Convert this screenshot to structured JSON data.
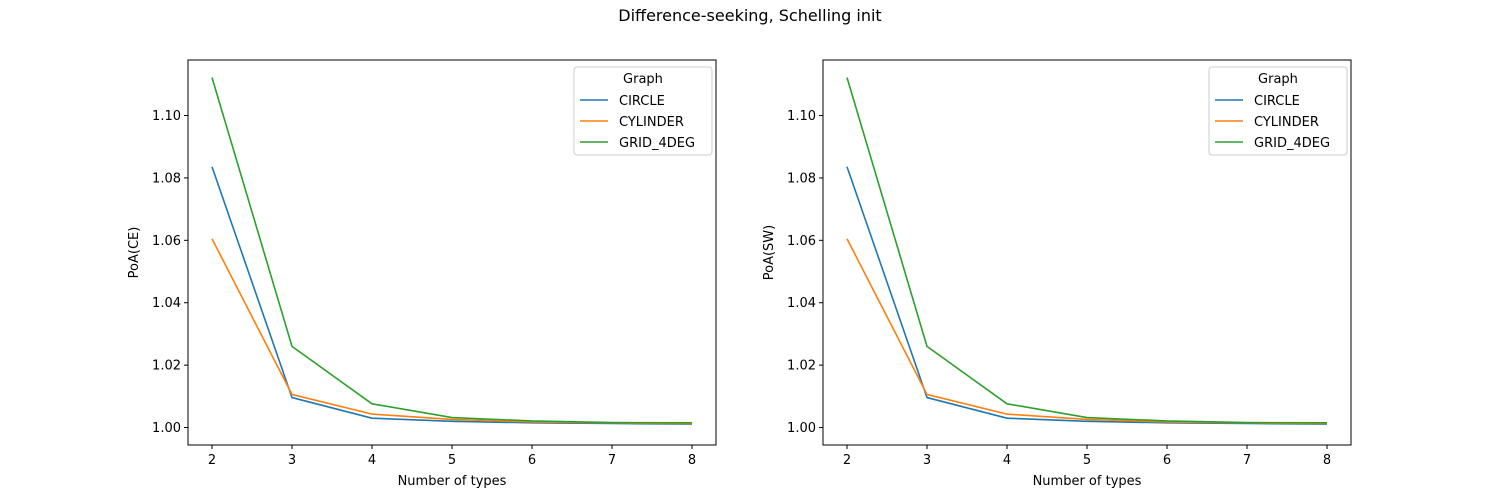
{
  "figure": {
    "title": "Difference-seeking, Schelling init"
  },
  "chart_data": [
    {
      "type": "line",
      "xlabel": "Number of types",
      "ylabel": "PoA(CE)",
      "x": [
        2,
        3,
        4,
        5,
        6,
        7,
        8
      ],
      "xlim": [
        1.7,
        8.3
      ],
      "ylim": [
        0.9944,
        1.1178
      ],
      "xticks": [
        "2",
        "3",
        "4",
        "5",
        "6",
        "7",
        "8"
      ],
      "yticks": [
        "1.00",
        "1.02",
        "1.04",
        "1.06",
        "1.08",
        "1.10"
      ],
      "legend": {
        "title": "Graph",
        "position": "top-right"
      },
      "grid": false,
      "series": [
        {
          "name": "CIRCLE",
          "color": "#1f77b4",
          "values": [
            1.0836,
            1.0096,
            1.003,
            1.002,
            1.0015,
            1.0013,
            1.0011
          ]
        },
        {
          "name": "CYLINDER",
          "color": "#ff7f0e",
          "values": [
            1.0605,
            1.0106,
            1.0043,
            1.0026,
            1.0018,
            1.0015,
            1.0013
          ]
        },
        {
          "name": "GRID_4DEG",
          "color": "#2ca02c",
          "values": [
            1.1122,
            1.026,
            1.0076,
            1.0032,
            1.0021,
            1.0016,
            1.0015
          ]
        }
      ]
    },
    {
      "type": "line",
      "xlabel": "Number of types",
      "ylabel": "PoA(SW)",
      "x": [
        2,
        3,
        4,
        5,
        6,
        7,
        8
      ],
      "xlim": [
        1.7,
        8.3
      ],
      "ylim": [
        0.9944,
        1.1178
      ],
      "xticks": [
        "2",
        "3",
        "4",
        "5",
        "6",
        "7",
        "8"
      ],
      "yticks": [
        "1.00",
        "1.02",
        "1.04",
        "1.06",
        "1.08",
        "1.10"
      ],
      "legend": {
        "title": "Graph",
        "position": "top-right"
      },
      "grid": false,
      "series": [
        {
          "name": "CIRCLE",
          "color": "#1f77b4",
          "values": [
            1.0836,
            1.0096,
            1.003,
            1.002,
            1.0015,
            1.0013,
            1.0011
          ]
        },
        {
          "name": "CYLINDER",
          "color": "#ff7f0e",
          "values": [
            1.0605,
            1.0106,
            1.0043,
            1.0026,
            1.0018,
            1.0015,
            1.0013
          ]
        },
        {
          "name": "GRID_4DEG",
          "color": "#2ca02c",
          "values": [
            1.1122,
            1.026,
            1.0076,
            1.0032,
            1.0021,
            1.0016,
            1.0015
          ]
        }
      ]
    }
  ]
}
